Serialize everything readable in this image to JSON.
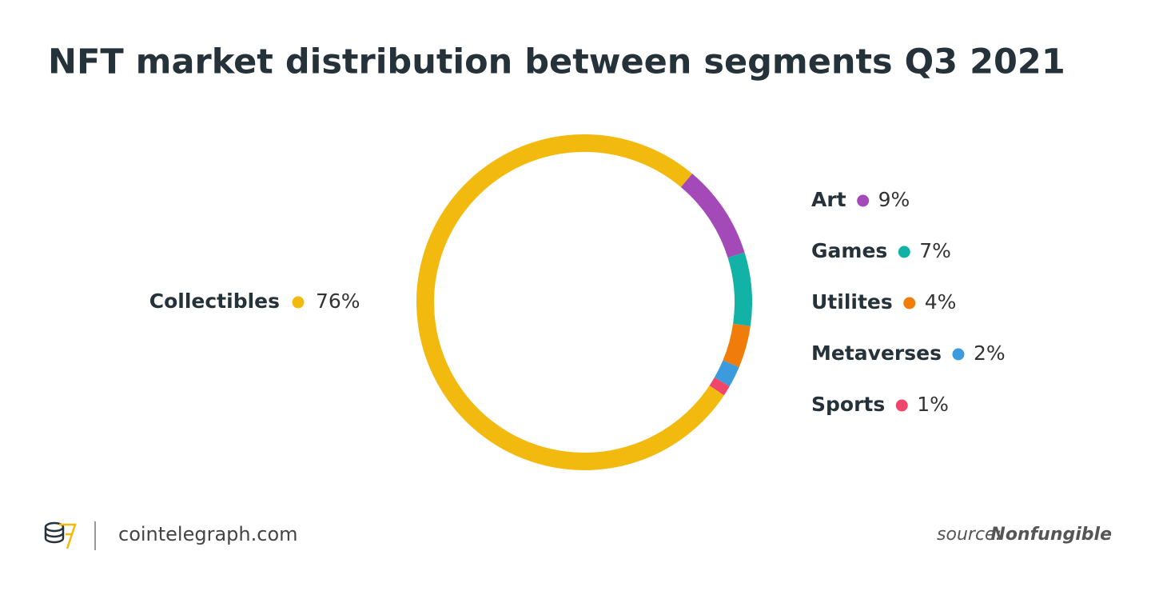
{
  "chart_data": {
    "type": "donut",
    "title": "NFT market distribution between segments Q3 2021",
    "categories": [
      "Art",
      "Games",
      "Utilites",
      "Metaverses",
      "Sports",
      "Collectibles"
    ],
    "values": [
      9,
      7,
      4,
      2,
      1,
      76
    ],
    "value_labels": [
      "9%",
      "7%",
      "4%",
      "2%",
      "1%",
      "76%"
    ],
    "colors": [
      "#a349b8",
      "#12b2a7",
      "#f07c0a",
      "#3b9bdc",
      "#f0466a",
      "#f2b90f"
    ]
  },
  "footer": {
    "site": "cointelegraph.com",
    "source_label": "source:",
    "source": "Nonfungible"
  }
}
